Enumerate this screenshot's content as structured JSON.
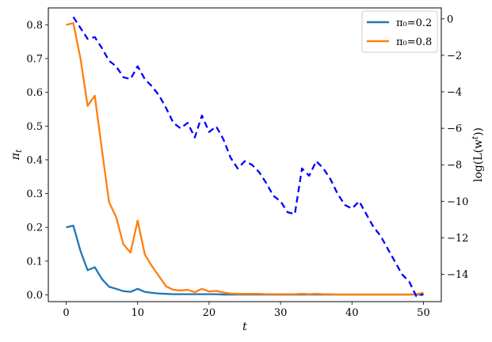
{
  "chart_data": {
    "type": "line",
    "xlabel": "t",
    "ylabel_left": "π",
    "ylabel_left_sub": "t",
    "ylabel_right": "log(L(w",
    "ylabel_right_sup": "t",
    "ylabel_right_end": "))",
    "xlim": [
      -2.5,
      52.5
    ],
    "ylim_left": [
      -0.02,
      0.85
    ],
    "ylim_right": [
      -15.5,
      0.6
    ],
    "xticks": [
      0,
      10,
      20,
      30,
      40,
      50
    ],
    "xtick_labels": [
      "0",
      "10",
      "20",
      "30",
      "40",
      "50"
    ],
    "yticks_left": [
      0.0,
      0.1,
      0.2,
      0.3,
      0.4,
      0.5,
      0.6,
      0.7,
      0.8
    ],
    "ytick_labels_left": [
      "0.0",
      "0.1",
      "0.2",
      "0.3",
      "0.4",
      "0.5",
      "0.6",
      "0.7",
      "0.8"
    ],
    "yticks_right": [
      0,
      -2,
      -4,
      -6,
      -8,
      -10,
      -12,
      -14
    ],
    "ytick_labels_right": [
      "0",
      "−2",
      "−4",
      "−6",
      "−8",
      "−10",
      "−12",
      "−14"
    ],
    "legend_position": "top-right",
    "series": [
      {
        "name": "π₀=0.2",
        "axis": "left",
        "color": "#1f77b4",
        "style": "solid",
        "x": [
          0,
          1,
          2,
          3,
          4,
          5,
          6,
          7,
          8,
          9,
          10,
          11,
          12,
          13,
          14,
          15,
          16,
          17,
          18,
          19,
          20,
          21,
          22,
          23,
          24,
          25,
          26,
          27,
          28,
          29,
          30,
          31,
          32,
          33,
          34,
          35,
          36,
          37,
          38,
          39,
          40,
          41,
          42,
          43,
          44,
          45,
          46,
          47,
          48,
          49,
          50
        ],
        "values": [
          0.2,
          0.205,
          0.13,
          0.073,
          0.082,
          0.047,
          0.024,
          0.018,
          0.011,
          0.009,
          0.018,
          0.009,
          0.006,
          0.004,
          0.003,
          0.002,
          0.002,
          0.002,
          0.002,
          0.002,
          0.002,
          0.002,
          0.001,
          0.001,
          0.001,
          0.001,
          0.001,
          0.001,
          0.001,
          0.001,
          0.001,
          0.001,
          0.001,
          0.001,
          0.001,
          0.001,
          0.001,
          0.001,
          0.001,
          0.001,
          0.001,
          0.001,
          0.001,
          0.001,
          0.001,
          0.001,
          0.001,
          0.001,
          0.001,
          0.001,
          0.001
        ]
      },
      {
        "name": "π₀=0.8",
        "axis": "left",
        "color": "#ff7f0e",
        "style": "solid",
        "x": [
          0,
          1,
          2,
          3,
          4,
          5,
          6,
          7,
          8,
          9,
          10,
          11,
          12,
          13,
          14,
          15,
          16,
          17,
          18,
          19,
          20,
          21,
          22,
          23,
          24,
          25,
          26,
          27,
          28,
          29,
          30,
          31,
          32,
          33,
          34,
          35,
          36,
          37,
          38,
          39,
          40,
          41,
          42,
          43,
          44,
          45,
          46,
          47,
          48,
          49,
          50
        ],
        "values": [
          0.8,
          0.805,
          0.7,
          0.56,
          0.59,
          0.43,
          0.275,
          0.23,
          0.15,
          0.125,
          0.22,
          0.12,
          0.085,
          0.055,
          0.025,
          0.015,
          0.013,
          0.015,
          0.008,
          0.018,
          0.01,
          0.012,
          0.007,
          0.004,
          0.003,
          0.003,
          0.003,
          0.003,
          0.002,
          0.002,
          0.002,
          0.002,
          0.002,
          0.003,
          0.002,
          0.003,
          0.002,
          0.002,
          0.001,
          0.001,
          0.001,
          0.001,
          0.001,
          0.001,
          0.001,
          0.001,
          0.001,
          0.001,
          0.001,
          0.002,
          0.006
        ]
      },
      {
        "name": "",
        "axis": "right",
        "color": "#0000ff",
        "style": "dashed",
        "x": [
          1,
          2,
          3,
          4,
          5,
          6,
          7,
          8,
          9,
          10,
          11,
          12,
          13,
          14,
          15,
          16,
          17,
          18,
          19,
          20,
          21,
          22,
          23,
          24,
          25,
          26,
          27,
          28,
          29,
          30,
          31,
          32,
          33,
          34,
          35,
          36,
          37,
          38,
          39,
          40,
          41,
          42,
          43,
          44,
          45,
          46,
          47,
          48,
          49,
          50
        ],
        "values": [
          0.1,
          -0.5,
          -1.1,
          -1.0,
          -1.6,
          -2.3,
          -2.6,
          -3.2,
          -3.3,
          -2.6,
          -3.3,
          -3.7,
          -4.2,
          -4.9,
          -5.7,
          -6.0,
          -5.7,
          -6.5,
          -5.3,
          -6.2,
          -5.9,
          -6.6,
          -7.6,
          -8.2,
          -7.8,
          -8.0,
          -8.4,
          -9.0,
          -9.7,
          -10.0,
          -10.6,
          -10.7,
          -8.2,
          -8.6,
          -7.8,
          -8.2,
          -8.8,
          -9.6,
          -10.2,
          -10.4,
          -10.0,
          -10.7,
          -11.4,
          -11.9,
          -12.6,
          -13.3,
          -14.0,
          -14.4,
          -15.2,
          -15.1
        ]
      }
    ]
  }
}
